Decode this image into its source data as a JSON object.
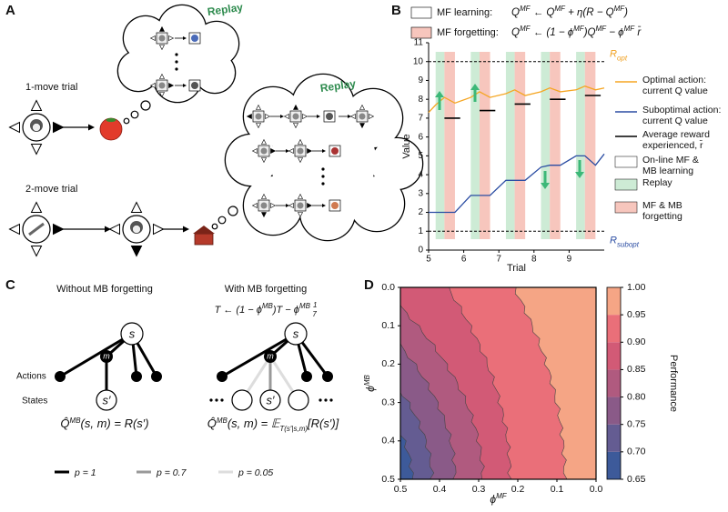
{
  "panel_labels": [
    "A",
    "B",
    "C",
    "D"
  ],
  "panel_a": {
    "replay_1": "Replay",
    "replay_2": "Replay",
    "one_move": "1-move trial",
    "two_move": "2-move trial"
  },
  "chart_data": [
    {
      "type": "line",
      "xlabel": "Trial",
      "ylabel": "Value",
      "xlim": [
        5,
        10
      ],
      "xticks": [
        5,
        6,
        7,
        8,
        9
      ],
      "ylim": [
        0,
        11
      ],
      "yticks": [
        0,
        1,
        2,
        3,
        4,
        5,
        6,
        7,
        8,
        9,
        10,
        11
      ],
      "formula_legend": [
        {
          "label": "MF learning:",
          "color": "#ffffff",
          "formula": [
            "Q",
            {
              "sup": "MF"
            },
            " ← Q",
            {
              "sup": "MF"
            },
            " + η(R − Q",
            {
              "sup": "MF"
            },
            ")"
          ]
        },
        {
          "label": "MF forgetting:",
          "color": "#f7c6bd",
          "formula": [
            "Q",
            {
              "sup": "MF"
            },
            " ← (1 − ϕ",
            {
              "sup": "MF"
            },
            ")Q",
            {
              "sup": "MF"
            },
            " − ϕ",
            {
              "sup": "MF"
            },
            " r̄"
          ]
        }
      ],
      "phases": [
        {
          "name": "On-line MF & MB learning",
          "color": "#ffffff"
        },
        {
          "name": "Replay",
          "color": "#cdebd5",
          "spans": [
            [
              5.2,
              5.45
            ],
            [
              6.2,
              6.45
            ],
            [
              7.2,
              7.45
            ],
            [
              8.2,
              8.45
            ],
            [
              9.2,
              9.45
            ]
          ]
        },
        {
          "name": "MF & MB forgetting",
          "color": "#f7c6bd",
          "spans": [
            [
              5.45,
              5.75
            ],
            [
              6.45,
              6.75
            ],
            [
              7.45,
              7.75
            ],
            [
              8.45,
              8.75
            ],
            [
              9.45,
              9.75
            ]
          ]
        }
      ],
      "series": [
        {
          "name": "Optimal action: current Q value",
          "color": "#f5a623",
          "x": [
            5.0,
            5.2,
            5.45,
            5.75,
            6.2,
            6.45,
            6.75,
            7.2,
            7.45,
            7.75,
            8.2,
            8.45,
            8.75,
            9.2,
            9.45,
            9.75,
            10.0
          ],
          "values": [
            7.3,
            7.7,
            8.1,
            7.8,
            8.1,
            8.4,
            8.1,
            8.3,
            8.5,
            8.2,
            8.4,
            8.6,
            8.4,
            8.5,
            8.7,
            8.5,
            8.6
          ]
        },
        {
          "name": "Suboptimal action: current Q value",
          "color": "#2b4da3",
          "x": [
            5.0,
            5.2,
            5.45,
            5.75,
            6.2,
            6.45,
            6.75,
            7.2,
            7.45,
            7.75,
            8.2,
            8.45,
            8.75,
            9.2,
            9.45,
            9.75,
            10.0
          ],
          "values": [
            2.0,
            2.0,
            2.0,
            2.0,
            2.9,
            2.9,
            2.9,
            3.7,
            3.7,
            3.7,
            4.4,
            4.5,
            4.5,
            5.0,
            5.0,
            4.5,
            5.1
          ]
        },
        {
          "name": "Average reward experienced, r̄",
          "color": "#000000",
          "x": [
            5.45,
            5.9,
            null,
            6.45,
            6.9,
            null,
            7.45,
            7.9,
            null,
            8.45,
            8.9,
            null,
            9.45,
            9.9
          ],
          "values": [
            7.0,
            7.0,
            null,
            7.4,
            7.4,
            null,
            7.75,
            7.75,
            null,
            8.0,
            8.0,
            null,
            8.2,
            8.2
          ]
        }
      ],
      "reference_lines": [
        {
          "value": 10,
          "label": "R",
          "sub": "opt",
          "color": "#f0a020"
        },
        {
          "value": 1,
          "label": "R",
          "sub": "subopt",
          "color": "#2b4da3"
        }
      ]
    },
    {
      "type": "contour",
      "xlabel": [
        "ϕ",
        {
          "sup": "MF"
        }
      ],
      "ylabel": [
        "ϕ",
        {
          "sup": "MB"
        }
      ],
      "xlim": [
        0.5,
        0
      ],
      "xticks": [
        0.5,
        0.4,
        0.3,
        0.2,
        0.1,
        {
          "value": 0,
          "label": "0.0"
        }
      ],
      "ylim": [
        0,
        0.5
      ],
      "yticks": [
        {
          "value": 0,
          "label": "0.0"
        },
        0.1,
        0.2,
        0.3,
        0.4,
        0.5
      ],
      "colorbar_label": "Performance",
      "levels": [
        0.65,
        {
          "value": 0.7,
          "label": "0.70"
        },
        0.75,
        {
          "value": 0.8,
          "label": "0.80"
        },
        0.85,
        {
          "value": 0.9,
          "label": "0.90"
        },
        0.95,
        {
          "value": 1,
          "label": "1.00"
        }
      ],
      "colors": [
        "#3d5a9a",
        "#645c92",
        "#8a5a88",
        "#b05a7f",
        "#d25a76",
        "#ea6f79",
        "#f5a585"
      ]
    }
  ],
  "panel_c": {
    "title_left": "Without MB forgetting",
    "title_right": "With MB forgetting",
    "update": [
      "T ← (1 − ϕ",
      {
        "sup": "MB"
      },
      ")T − ϕ",
      {
        "sup": "MB"
      },
      " ",
      {
        "num": "1",
        "den": "7"
      }
    ],
    "actions": "Actions",
    "states": "States",
    "node_s": "s",
    "node_m": "m",
    "node_s_prime": "s′",
    "eq_left": [
      "Q̂",
      {
        "sup": "MB"
      },
      "(s, m) = R(s′)"
    ],
    "eq_right": [
      "Q̂",
      {
        "sup": "MB"
      },
      "(s, m) = 𝔼",
      {
        "sub": "T(s′|s,m)"
      },
      "[R(s′)]"
    ],
    "legend": [
      {
        "label": "p = 1",
        "color": "#000000"
      },
      {
        "label": "p = 0.7",
        "color": "#999999"
      },
      {
        "label": "p = 0.05",
        "color": "#dddddd"
      }
    ]
  }
}
